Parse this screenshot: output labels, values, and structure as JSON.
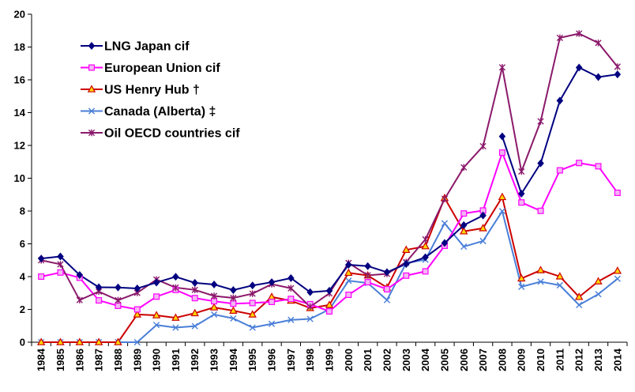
{
  "chart_data": {
    "type": "line",
    "title": "",
    "xlabel": "",
    "ylabel": "",
    "ylim": [
      0,
      20
    ],
    "yticks": [
      0,
      2,
      4,
      6,
      8,
      10,
      12,
      14,
      16,
      18,
      20
    ],
    "grid": false,
    "legend_position": "top-left",
    "categories": [
      "1984",
      "1985",
      "1986",
      "1987",
      "1988",
      "1989",
      "1990",
      "1991",
      "1992",
      "1993",
      "1994",
      "1995",
      "1996",
      "1997",
      "1998",
      "1999",
      "2000",
      "2001",
      "2002",
      "2003",
      "2004",
      "2005",
      "2006",
      "2007",
      "2008",
      "2009",
      "2010",
      "2011",
      "2012",
      "2013",
      "2014"
    ],
    "series": [
      {
        "name": "LNG Japan cif",
        "color": "#000080",
        "marker": "diamond",
        "values": [
          5.1,
          5.23,
          4.1,
          3.35,
          3.34,
          3.28,
          3.64,
          3.99,
          3.62,
          3.52,
          3.18,
          3.46,
          3.66,
          3.91,
          3.05,
          3.14,
          4.72,
          4.64,
          4.27,
          4.77,
          5.18,
          6.05,
          7.14,
          7.73,
          null,
          null,
          null,
          null,
          null,
          null,
          null
        ],
        "values_late": [
          null,
          null,
          null,
          null,
          null,
          null,
          null,
          null,
          null,
          null,
          null,
          null,
          null,
          null,
          null,
          null,
          null,
          null,
          null,
          null,
          null,
          null,
          null,
          null,
          12.55,
          9.06,
          10.91,
          14.73,
          16.75,
          16.17,
          16.33
        ]
      },
      {
        "name": "European Union cif",
        "color": "#FF00FF",
        "marker": "square",
        "values": [
          4.0,
          4.25,
          3.93,
          2.55,
          2.22,
          2.0,
          2.78,
          3.19,
          2.69,
          2.5,
          2.35,
          2.39,
          2.46,
          2.64,
          2.32,
          1.88,
          2.89,
          3.66,
          3.23,
          4.06,
          4.32,
          5.88,
          7.85,
          8.03,
          11.56,
          8.52,
          8.01,
          10.48,
          10.93,
          10.73,
          9.11
        ]
      },
      {
        "name": "US Henry Hub †",
        "color": "#CC0000",
        "marker": "triangle",
        "values": [
          0,
          0,
          0,
          0,
          0,
          1.69,
          1.64,
          1.49,
          1.77,
          2.12,
          1.92,
          1.69,
          2.76,
          2.53,
          2.08,
          2.27,
          4.23,
          4.07,
          3.33,
          5.63,
          5.85,
          8.79,
          6.76,
          6.95,
          8.85,
          3.89,
          4.39,
          4.01,
          2.76,
          3.71,
          4.35
        ]
      },
      {
        "name": "Canada (Alberta) ‡",
        "color": "#4A7FD8",
        "marker": "x",
        "values": [
          0,
          0,
          0,
          0,
          0,
          0,
          1.05,
          0.89,
          0.98,
          1.69,
          1.45,
          0.89,
          1.12,
          1.36,
          1.42,
          2.0,
          3.75,
          3.61,
          2.57,
          4.83,
          5.03,
          7.25,
          5.83,
          6.17,
          7.99,
          3.38,
          3.69,
          3.47,
          2.27,
          2.93,
          3.87
        ]
      },
      {
        "name": "Oil OECD countries cif",
        "color": "#8B1A6B",
        "marker": "star",
        "values": [
          5.0,
          4.75,
          2.57,
          3.09,
          2.56,
          3.01,
          3.82,
          3.33,
          3.19,
          2.82,
          2.7,
          2.96,
          3.54,
          3.29,
          2.16,
          2.98,
          4.83,
          4.08,
          4.17,
          4.89,
          6.27,
          8.74,
          10.66,
          11.95,
          16.76,
          10.41,
          13.47,
          18.56,
          18.82,
          18.25,
          16.8
        ]
      }
    ]
  }
}
